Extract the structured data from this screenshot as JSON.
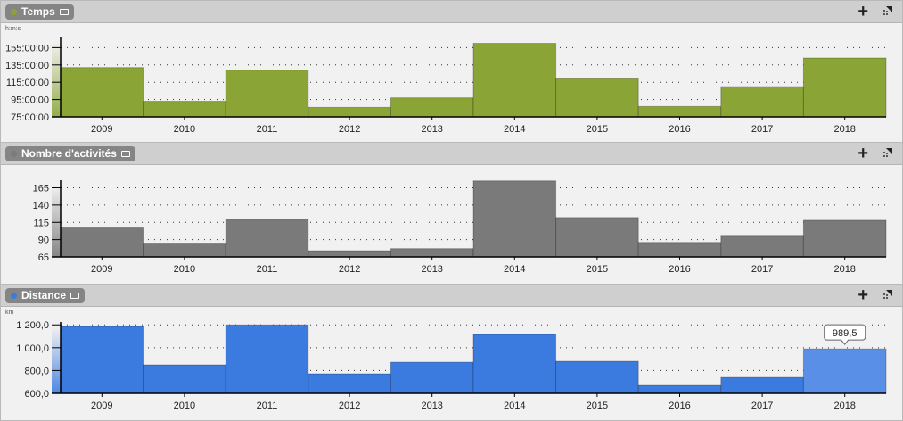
{
  "panels": [
    {
      "title": "Temps",
      "unit": "h:m:s",
      "dot_color": "#8aa536",
      "add_label": "+"
    },
    {
      "title": "Nombre d'activités",
      "unit": "",
      "dot_color": "#7a7a7a",
      "add_label": "+"
    },
    {
      "title": "Distance",
      "unit": "km",
      "dot_color": "#3b7be0",
      "add_label": "+"
    }
  ],
  "chart_data": [
    {
      "type": "bar",
      "categories": [
        "2009",
        "2010",
        "2011",
        "2012",
        "2013",
        "2014",
        "2015",
        "2016",
        "2017",
        "2018"
      ],
      "values": [
        132,
        93,
        129,
        86,
        97,
        160,
        119,
        87,
        110,
        143
      ],
      "value_unit": "hours",
      "ylim": [
        75,
        175
      ],
      "yticks": [
        75,
        95,
        115,
        135,
        155
      ],
      "ytick_labels": [
        "75:00:00",
        "95:00:00",
        "115:00:00",
        "135:00:00",
        "155:00:00"
      ],
      "ylabel": "h:m:s",
      "color": "#8aa536",
      "grid": "dotted"
    },
    {
      "type": "bar",
      "categories": [
        "2009",
        "2010",
        "2011",
        "2012",
        "2013",
        "2014",
        "2015",
        "2016",
        "2017",
        "2018"
      ],
      "values": [
        107,
        85,
        119,
        74,
        77,
        175,
        122,
        86,
        95,
        118
      ],
      "ylim": [
        65,
        185
      ],
      "yticks": [
        65,
        90,
        115,
        140,
        165
      ],
      "ytick_labels": [
        "65",
        "90",
        "115",
        "140",
        "165"
      ],
      "ylabel": "",
      "color": "#7a7a7a",
      "grid": "dotted"
    },
    {
      "type": "bar",
      "categories": [
        "2009",
        "2010",
        "2011",
        "2012",
        "2013",
        "2014",
        "2015",
        "2016",
        "2017",
        "2018"
      ],
      "values": [
        1186,
        850,
        1200,
        772,
        873,
        1116,
        881,
        670,
        740,
        989.5
      ],
      "ylim": [
        600,
        1280
      ],
      "yticks": [
        600,
        800,
        1000,
        1200
      ],
      "ytick_labels": [
        "600,0",
        "800,0",
        "1 000,0",
        "1 200,0"
      ],
      "ylabel": "km",
      "color": "#3b7be0",
      "highlight_color": "#5a8fe8",
      "highlight_index": 9,
      "tooltip": "989,5",
      "grid": "dotted"
    }
  ]
}
